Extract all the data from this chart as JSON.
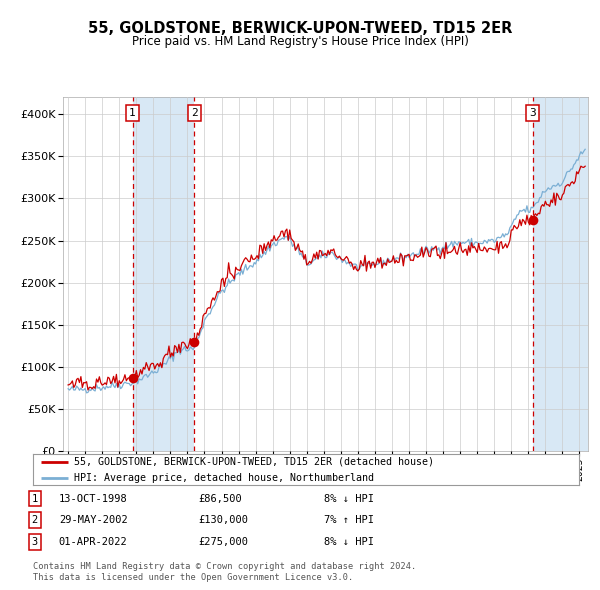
{
  "title": "55, GOLDSTONE, BERWICK-UPON-TWEED, TD15 2ER",
  "subtitle": "Price paid vs. HM Land Registry's House Price Index (HPI)",
  "legend_line1": "55, GOLDSTONE, BERWICK-UPON-TWEED, TD15 2ER (detached house)",
  "legend_line2": "HPI: Average price, detached house, Northumberland",
  "transactions": [
    {
      "num": 1,
      "price": 86500,
      "tx_x": 1998.78
    },
    {
      "num": 2,
      "price": 130000,
      "tx_x": 2002.41
    },
    {
      "num": 3,
      "price": 275000,
      "tx_x": 2022.25
    }
  ],
  "table_rows": [
    {
      "num": 1,
      "date": "13-OCT-1998",
      "price": "£86,500",
      "pct": "8% ↓ HPI"
    },
    {
      "num": 2,
      "date": "29-MAY-2002",
      "price": "£130,000",
      "pct": "7% ↑ HPI"
    },
    {
      "num": 3,
      "date": "01-APR-2022",
      "price": "£275,000",
      "pct": "8% ↓ HPI"
    }
  ],
  "footnote1": "Contains HM Land Registry data © Crown copyright and database right 2024.",
  "footnote2": "This data is licensed under the Open Government Licence v3.0.",
  "hpi_color": "#7bafd4",
  "price_color": "#cc0000",
  "dot_color": "#cc0000",
  "dash_color": "#cc0000",
  "shade_color": "#d8e8f5",
  "ylim": [
    0,
    420000
  ],
  "yticks": [
    0,
    50000,
    100000,
    150000,
    200000,
    250000,
    300000,
    350000,
    400000
  ],
  "xlim_start": 1994.7,
  "xlim_end": 2025.5,
  "bg_color": "#ffffff",
  "grid_color": "#cccccc"
}
